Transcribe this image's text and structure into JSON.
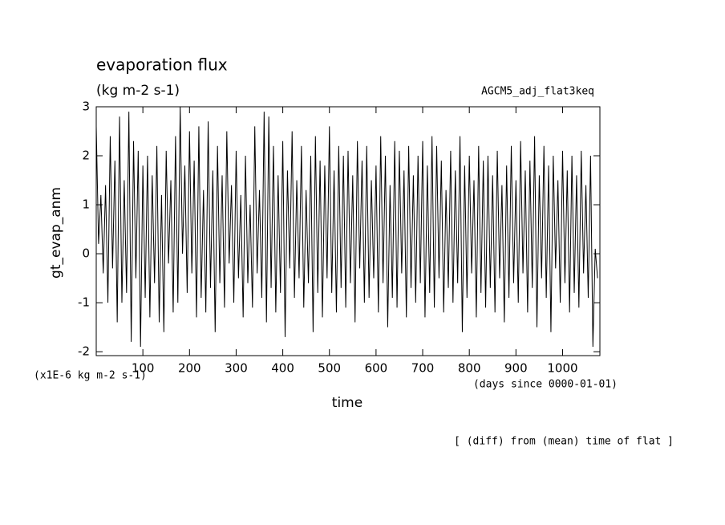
{
  "chart_data": {
    "type": "line",
    "title": "evaporation flux",
    "subtitle": "(kg m-2 s-1)",
    "annotation": "AGCM5_adj_flat3keq",
    "y_label": "gt_evap_anm",
    "y_units": "(x1E-6 kg m-2 s-1)",
    "x_label": "time",
    "x_units": "(days since 0000-01-01)",
    "footnote": "[ (diff) from (mean) time of flat ]",
    "xlim": [
      0,
      1080
    ],
    "ylim": [
      -2.08,
      3
    ],
    "xticks": [
      100,
      200,
      300,
      400,
      500,
      600,
      700,
      800,
      900,
      1000
    ],
    "yticks": [
      -2,
      -1,
      0,
      1,
      2,
      3
    ],
    "grid": false,
    "x": [
      0,
      5,
      10,
      15,
      20,
      25,
      30,
      35,
      40,
      45,
      50,
      55,
      60,
      65,
      70,
      75,
      80,
      85,
      90,
      95,
      100,
      105,
      110,
      115,
      120,
      125,
      130,
      135,
      140,
      145,
      150,
      155,
      160,
      165,
      170,
      175,
      180,
      185,
      190,
      195,
      200,
      205,
      210,
      215,
      220,
      225,
      230,
      235,
      240,
      245,
      250,
      255,
      260,
      265,
      270,
      275,
      280,
      285,
      290,
      295,
      300,
      305,
      310,
      315,
      320,
      325,
      330,
      335,
      340,
      345,
      350,
      355,
      360,
      365,
      370,
      375,
      380,
      385,
      390,
      395,
      400,
      405,
      410,
      415,
      420,
      425,
      430,
      435,
      440,
      445,
      450,
      455,
      460,
      465,
      470,
      475,
      480,
      485,
      490,
      495,
      500,
      505,
      510,
      515,
      520,
      525,
      530,
      535,
      540,
      545,
      550,
      555,
      560,
      565,
      570,
      575,
      580,
      585,
      590,
      595,
      600,
      605,
      610,
      615,
      620,
      625,
      630,
      635,
      640,
      645,
      650,
      655,
      660,
      665,
      670,
      675,
      680,
      685,
      690,
      695,
      700,
      705,
      710,
      715,
      720,
      725,
      730,
      735,
      740,
      745,
      750,
      755,
      760,
      765,
      770,
      775,
      780,
      785,
      790,
      795,
      800,
      805,
      810,
      815,
      820,
      825,
      830,
      835,
      840,
      845,
      850,
      855,
      860,
      865,
      870,
      875,
      880,
      885,
      890,
      895,
      900,
      905,
      910,
      915,
      920,
      925,
      930,
      935,
      940,
      945,
      950,
      955,
      960,
      965,
      970,
      975,
      980,
      985,
      990,
      995,
      1000,
      1005,
      1010,
      1015,
      1020,
      1025,
      1030,
      1035,
      1040,
      1045,
      1050,
      1055,
      1060,
      1065,
      1070,
      1075
    ],
    "series": [
      {
        "name": "gt_evap_anm",
        "color": "#000000",
        "values": [
          2.6,
          0.2,
          1.2,
          -0.4,
          1.4,
          -1.0,
          2.4,
          -0.3,
          1.9,
          -1.4,
          2.8,
          -1.0,
          1.5,
          -0.8,
          2.9,
          -1.8,
          2.3,
          -0.5,
          2.1,
          -1.9,
          1.8,
          -0.9,
          2.0,
          -1.3,
          1.6,
          -0.6,
          2.2,
          -1.4,
          1.2,
          -1.6,
          2.1,
          -0.2,
          1.5,
          -1.2,
          2.4,
          -1.0,
          3.0,
          0.0,
          1.8,
          -0.8,
          2.5,
          -0.4,
          1.9,
          -1.3,
          2.6,
          -0.9,
          1.3,
          -1.2,
          2.7,
          -0.7,
          1.7,
          -1.6,
          2.2,
          -0.6,
          1.6,
          -1.1,
          2.5,
          -0.2,
          1.4,
          -1.0,
          2.1,
          -0.5,
          1.2,
          -1.3,
          2.0,
          -0.6,
          1.0,
          -1.1,
          2.6,
          -0.4,
          1.3,
          -0.9,
          2.9,
          -1.4,
          2.8,
          -0.7,
          2.2,
          -1.2,
          1.6,
          -0.8,
          2.3,
          -1.7,
          1.7,
          -0.3,
          2.5,
          -0.9,
          1.5,
          -0.5,
          2.2,
          -1.1,
          1.3,
          -0.6,
          2.0,
          -1.6,
          2.4,
          -0.8,
          1.9,
          -1.3,
          1.8,
          -0.5,
          2.6,
          -0.8,
          1.7,
          -1.2,
          2.2,
          -0.7,
          2.0,
          -1.1,
          2.1,
          -0.6,
          1.6,
          -1.4,
          2.3,
          -0.3,
          1.9,
          -1.0,
          2.2,
          -0.9,
          1.5,
          -0.5,
          1.8,
          -1.2,
          2.4,
          -0.6,
          2.0,
          -1.5,
          1.4,
          -0.9,
          2.3,
          -1.1,
          2.1,
          -0.4,
          1.7,
          -1.3,
          2.2,
          -0.7,
          1.6,
          -1.0,
          2.0,
          -0.6,
          2.3,
          -1.3,
          1.8,
          -0.8,
          2.4,
          -1.1,
          2.2,
          -0.5,
          1.9,
          -1.2,
          1.3,
          -0.7,
          2.1,
          -1.0,
          1.7,
          -0.6,
          2.4,
          -1.6,
          1.8,
          -0.9,
          2.0,
          -0.4,
          1.5,
          -1.3,
          2.2,
          -0.8,
          1.9,
          -1.1,
          2.0,
          -0.7,
          1.6,
          -1.2,
          2.1,
          -0.5,
          1.4,
          -1.4,
          1.8,
          -0.9,
          2.2,
          -0.6,
          1.5,
          -1.0,
          2.3,
          -0.4,
          1.7,
          -1.2,
          1.9,
          -0.7,
          2.4,
          -1.5,
          1.6,
          -0.5,
          2.2,
          -0.9,
          1.8,
          -1.6,
          2.0,
          -0.3,
          1.5,
          -1.0,
          2.1,
          -0.6,
          1.7,
          -1.2,
          2.0,
          -0.8,
          1.6,
          -1.1,
          2.1,
          -0.4,
          1.4,
          -0.9,
          2.0,
          -1.9,
          0.1,
          -0.5
        ]
      }
    ]
  }
}
